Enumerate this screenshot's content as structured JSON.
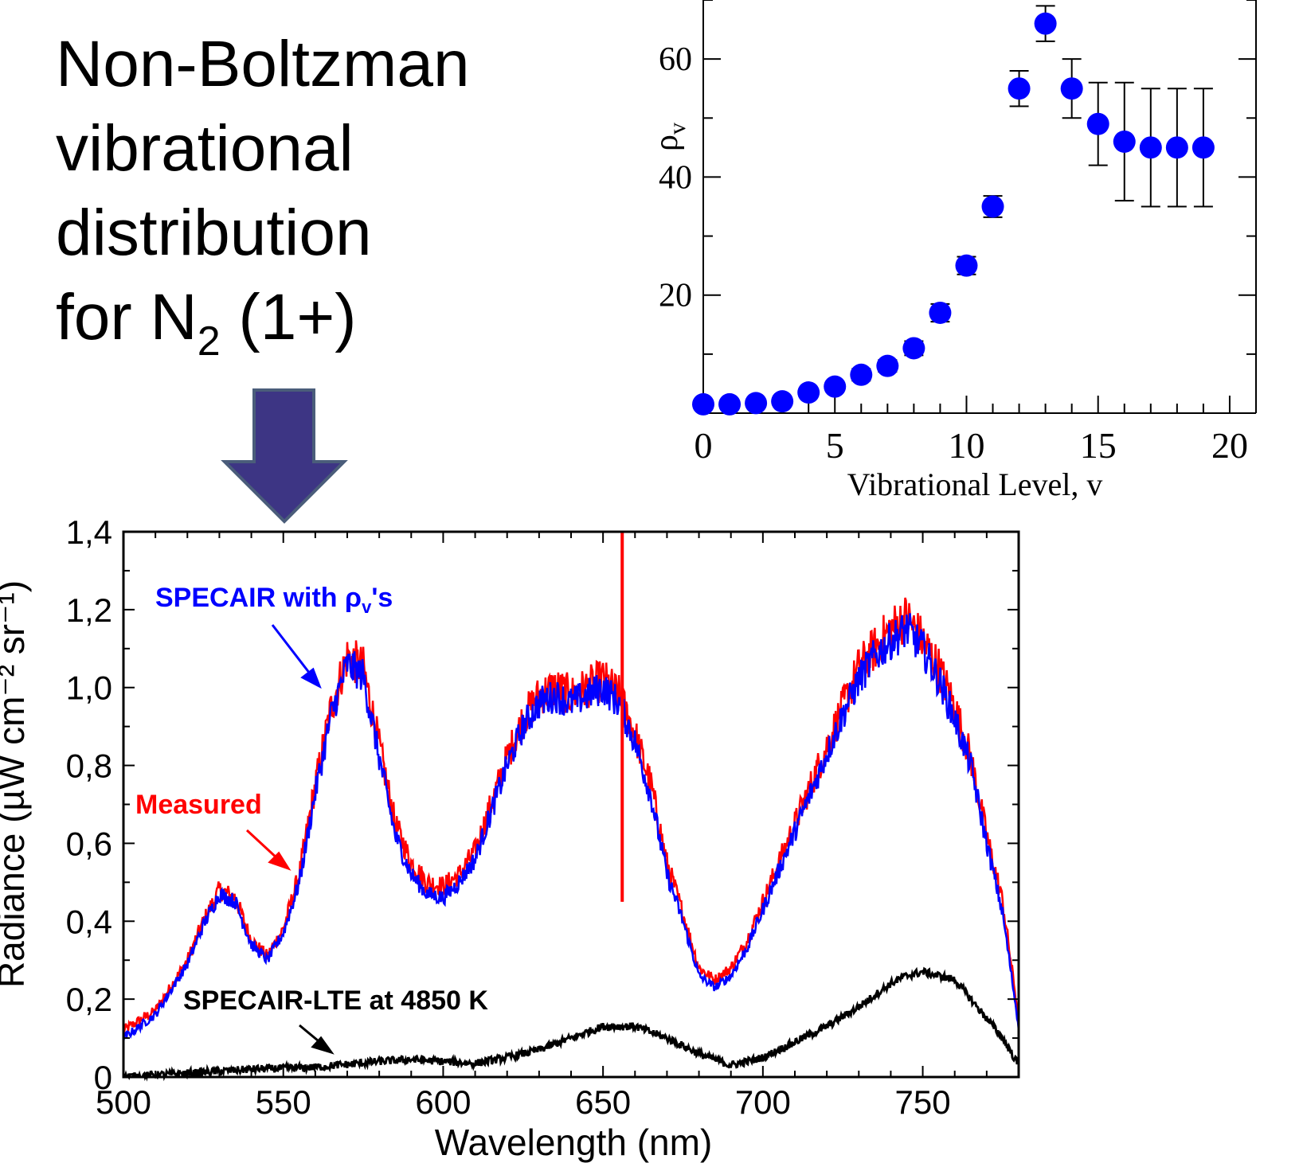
{
  "title": {
    "line1": "Non-Boltzman",
    "line2": "vibrational",
    "line3": "distribution",
    "line4_prefix": "for N",
    "line4_sub": "2",
    "line4_suffix": " (1+)"
  },
  "colors": {
    "arrow_fill": "#3d3584",
    "arrow_stroke": "#4a5d7a",
    "measured": "#ff0000",
    "specair": "#0000ff",
    "lte": "#000000",
    "points": "#0000ff"
  },
  "chart_data": [
    {
      "type": "scatter",
      "title": "",
      "xlabel": "Vibrational Level, v",
      "ylabel_base": "ρ",
      "ylabel_sub": "v",
      "xlim": [
        0,
        21
      ],
      "ylim": [
        0,
        70
      ],
      "xticks": [
        "0",
        "5",
        "10",
        "15",
        "20"
      ],
      "yticks": [
        "20",
        "40",
        "60"
      ],
      "grid": false,
      "series": [
        {
          "x": [
            0,
            1,
            2,
            3,
            4,
            5,
            6,
            7,
            8,
            9,
            10,
            11,
            12,
            13,
            14,
            15,
            16,
            17,
            18,
            19
          ],
          "y": [
            1.5,
            1.5,
            1.7,
            2,
            3.5,
            4.5,
            6.5,
            8,
            11,
            17,
            25,
            35,
            55,
            66,
            55,
            49,
            46,
            45,
            45,
            45
          ],
          "err": [
            0.6,
            0.6,
            0.6,
            0.6,
            0.8,
            0.8,
            1,
            1,
            1.2,
            1.5,
            1.5,
            1.8,
            3,
            3,
            5,
            7,
            10,
            10,
            10,
            10
          ]
        }
      ]
    },
    {
      "type": "line",
      "title": "",
      "xlabel": "Wavelength (nm)",
      "ylabel": "Radiance (µW cm⁻² sr⁻¹)",
      "xlim": [
        500,
        780
      ],
      "ylim": [
        0,
        1.4
      ],
      "xticks": [
        "500",
        "550",
        "600",
        "650",
        "700",
        "750"
      ],
      "yticks": [
        "0",
        "0,2",
        "0,4",
        "0,6",
        "0,8",
        "1,0",
        "1,2",
        "1,4"
      ],
      "series": [
        {
          "name": "Measured",
          "x": [
            500,
            510,
            520,
            525,
            530,
            535,
            540,
            545,
            550,
            555,
            560,
            565,
            570,
            575,
            580,
            585,
            590,
            595,
            600,
            605,
            610,
            615,
            620,
            625,
            630,
            635,
            640,
            645,
            650,
            655,
            660,
            665,
            670,
            675,
            680,
            685,
            690,
            695,
            700,
            705,
            710,
            715,
            720,
            725,
            730,
            735,
            740,
            745,
            750,
            755,
            760,
            765,
            770,
            775,
            780
          ],
          "y": [
            0.12,
            0.17,
            0.3,
            0.4,
            0.48,
            0.46,
            0.35,
            0.31,
            0.38,
            0.52,
            0.75,
            0.95,
            1.08,
            1.05,
            0.85,
            0.65,
            0.55,
            0.5,
            0.49,
            0.52,
            0.58,
            0.7,
            0.82,
            0.92,
            0.98,
            1.0,
            0.98,
            1.0,
            1.02,
            0.98,
            0.88,
            0.75,
            0.55,
            0.42,
            0.28,
            0.25,
            0.28,
            0.35,
            0.45,
            0.55,
            0.65,
            0.75,
            0.85,
            0.95,
            1.05,
            1.1,
            1.15,
            1.18,
            1.12,
            1.05,
            0.95,
            0.82,
            0.62,
            0.45,
            0.15
          ]
        },
        {
          "name": "SPECAIR with ρv's",
          "x": [
            500,
            510,
            520,
            525,
            530,
            535,
            540,
            545,
            550,
            555,
            560,
            565,
            570,
            575,
            580,
            585,
            590,
            595,
            600,
            605,
            610,
            615,
            620,
            625,
            630,
            635,
            640,
            645,
            650,
            655,
            660,
            665,
            670,
            675,
            680,
            685,
            690,
            695,
            700,
            705,
            710,
            715,
            720,
            725,
            730,
            735,
            740,
            745,
            750,
            755,
            760,
            765,
            770,
            775,
            780
          ],
          "y": [
            0.1,
            0.16,
            0.29,
            0.39,
            0.47,
            0.45,
            0.34,
            0.3,
            0.37,
            0.5,
            0.73,
            0.93,
            1.06,
            1.03,
            0.82,
            0.62,
            0.52,
            0.47,
            0.46,
            0.5,
            0.56,
            0.68,
            0.8,
            0.9,
            0.96,
            0.98,
            0.96,
            0.98,
            1.0,
            0.96,
            0.86,
            0.72,
            0.52,
            0.4,
            0.26,
            0.23,
            0.26,
            0.33,
            0.43,
            0.53,
            0.63,
            0.73,
            0.83,
            0.93,
            1.02,
            1.08,
            1.12,
            1.15,
            1.1,
            1.02,
            0.92,
            0.8,
            0.6,
            0.42,
            0.13
          ]
        },
        {
          "name": "SPECAIR-LTE at 4850 K",
          "x": [
            500,
            520,
            540,
            560,
            580,
            590,
            600,
            610,
            620,
            630,
            640,
            650,
            660,
            670,
            680,
            690,
            700,
            710,
            720,
            730,
            740,
            745,
            750,
            755,
            760,
            765,
            770,
            775,
            780
          ],
          "y": [
            0.0,
            0.01,
            0.02,
            0.025,
            0.04,
            0.045,
            0.04,
            0.035,
            0.05,
            0.07,
            0.1,
            0.13,
            0.13,
            0.1,
            0.06,
            0.03,
            0.05,
            0.09,
            0.13,
            0.18,
            0.24,
            0.26,
            0.27,
            0.26,
            0.25,
            0.2,
            0.15,
            0.1,
            0.03
          ]
        }
      ],
      "annotations": {
        "specair_label": "SPECAIR with ρ",
        "specair_label_sub": "v",
        "specair_label_suffix": "'s",
        "measured_label": "Measured",
        "lte_label": "SPECAIR-LTE at 4850 K"
      }
    }
  ]
}
